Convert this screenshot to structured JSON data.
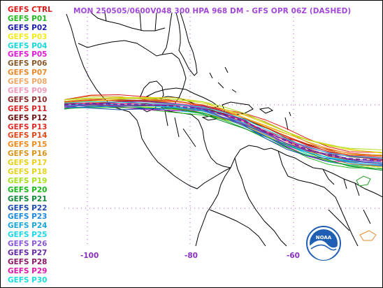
{
  "title": "MON 250505/0600V048  300 HPA 968 DM - GFS OPR 06Z (DASHED)",
  "legend": [
    {
      "label": "GEFS CTRL",
      "color": "#e01a1a"
    },
    {
      "label": "GEFS P01",
      "color": "#22b81e"
    },
    {
      "label": "GEFS P02",
      "color": "#1a1aa8"
    },
    {
      "label": "GEFS P03",
      "color": "#f2ec18"
    },
    {
      "label": "GEFS P04",
      "color": "#1cd6de"
    },
    {
      "label": "GEFS P05",
      "color": "#e01ad8"
    },
    {
      "label": "GEFS P06",
      "color": "#8a5a2a"
    },
    {
      "label": "GEFS P07",
      "color": "#e88a2c"
    },
    {
      "label": "GEFS P08",
      "color": "#f0a868"
    },
    {
      "label": "GEFS P09",
      "color": "#f39ab8"
    },
    {
      "label": "GEFS P10",
      "color": "#8a2a2a"
    },
    {
      "label": "GEFS P11",
      "color": "#d82020"
    },
    {
      "label": "GEFS P12",
      "color": "#6e1010"
    },
    {
      "label": "GEFS P13",
      "color": "#e02a2a"
    },
    {
      "label": "GEFS P14",
      "color": "#e0481a"
    },
    {
      "label": "GEFS P15",
      "color": "#f08a1a"
    },
    {
      "label": "GEFS P16",
      "color": "#d8941a"
    },
    {
      "label": "GEFS P17",
      "color": "#e8d018"
    },
    {
      "label": "GEFS P18",
      "color": "#e4d41a"
    },
    {
      "label": "GEFS P19",
      "color": "#a8e01a"
    },
    {
      "label": "GEFS P20",
      "color": "#18b818"
    },
    {
      "label": "GEFS P21",
      "color": "#108a38"
    },
    {
      "label": "GEFS P22",
      "color": "#1a4ab0"
    },
    {
      "label": "GEFS P23",
      "color": "#1a8ae0"
    },
    {
      "label": "GEFS P24",
      "color": "#18a8d8"
    },
    {
      "label": "GEFS P25",
      "color": "#1ad8e8"
    },
    {
      "label": "GEFS P26",
      "color": "#8a5ad8"
    },
    {
      "label": "GEFS P27",
      "color": "#6a2aa8"
    },
    {
      "label": "GEFS P28",
      "color": "#8a1a6a"
    },
    {
      "label": "GEFS P29",
      "color": "#e01aa8"
    },
    {
      "label": "GEFS P30",
      "color": "#1adede"
    }
  ],
  "axis": {
    "x_ticks": [
      "-100",
      "-80",
      "-60"
    ],
    "tick_color": "#8a2fc4",
    "grid_color": "#b050d0"
  },
  "logo": {
    "text": "NOAA"
  }
}
